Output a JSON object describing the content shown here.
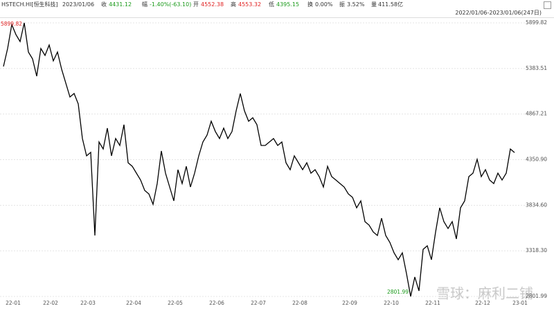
{
  "header": {
    "symbol": "HSTECH.HI[恒生科技]",
    "date": "2023/01/06",
    "close_label": "收",
    "close": "4431.12",
    "change_label": "幅",
    "change": "-1.40%(-63.10)",
    "open_label": "开",
    "open": "4552.38",
    "high_label": "高",
    "high": "4553.32",
    "low_label": "低",
    "low": "4395.15",
    "turnover_label": "换",
    "turnover": "0.00%",
    "amplitude_label": "振",
    "amplitude": "3.52%",
    "volume_label": "量",
    "volume": "411.58亿",
    "range": "2022/01/06-2023/01/06(247日)"
  },
  "watermark": "雪球：麻利二铺",
  "chart_data": {
    "type": "line",
    "color": "#000000",
    "grid": true,
    "categories": [
      null,
      "22-01",
      null,
      null,
      null,
      null,
      null,
      null,
      null,
      null,
      "22-02",
      null,
      null,
      null,
      null,
      null,
      null,
      null,
      null,
      "22-03",
      null,
      null,
      null,
      null,
      null,
      null,
      null,
      null,
      null,
      null,
      "22-04",
      null,
      null,
      null,
      null,
      null,
      null,
      null,
      null,
      null,
      "22-05",
      null,
      null,
      null,
      null,
      null,
      null,
      null,
      null,
      null,
      "22-06",
      null,
      null,
      null,
      null,
      null,
      null,
      null,
      null,
      null,
      "22-07",
      null,
      null,
      null,
      null,
      null,
      null,
      null,
      null,
      null,
      "22-08",
      null,
      null,
      null,
      null,
      null,
      null,
      null,
      null,
      null,
      null,
      null,
      "22-09",
      null,
      null,
      null,
      null,
      null,
      null,
      null,
      null,
      null,
      "22-10",
      null,
      null,
      null,
      null,
      null,
      null,
      null,
      null,
      null,
      "22-11",
      null,
      null,
      null,
      null,
      null,
      null,
      null,
      null,
      null,
      null,
      null,
      "22-12",
      null,
      null,
      null,
      null,
      null,
      null,
      null,
      null,
      "23-01"
    ],
    "values": [
      5406,
      5610,
      5880,
      5767,
      5688,
      5899.82,
      5570,
      5492,
      5296,
      5610,
      5531,
      5649,
      5469,
      5570,
      5374,
      5218,
      5061,
      5100,
      4982,
      4590,
      4394,
      4433,
      3492,
      4551,
      4472,
      4708,
      4394,
      4590,
      4512,
      4747,
      4316,
      4276,
      4198,
      4120,
      4002,
      3963,
      3845,
      4080,
      4449,
      4198,
      4041,
      3884,
      4237,
      4080,
      4276,
      4041,
      4198,
      4394,
      4551,
      4629,
      4786,
      4669,
      4590,
      4708,
      4590,
      4669,
      4904,
      5100,
      4904,
      4786,
      4825,
      4747,
      4512,
      4512,
      4551,
      4590,
      4512,
      4551,
      4316,
      4237,
      4394,
      4316,
      4237,
      4316,
      4198,
      4237,
      4159,
      4041,
      4276,
      4159,
      4120,
      4080,
      4041,
      3963,
      3924,
      3806,
      3884,
      3649,
      3610,
      3531,
      3492,
      3688,
      3492,
      3414,
      3296,
      3218,
      3296,
      3061,
      2801.99,
      3022,
      2865,
      3335,
      3375,
      3218,
      3531,
      3806,
      3649,
      3571,
      3649,
      3453,
      3806,
      3884,
      4159,
      4198,
      4355,
      4159,
      4237,
      4120,
      4080,
      4198,
      4120,
      4198,
      4472,
      4431.12
    ],
    "ylim": [
      2801.99,
      5899.82
    ],
    "yticks": [
      5899.82,
      5383.51,
      4867.21,
      {
        "value": 4350.9,
        "label": "4350.90"
      },
      {
        "value": 3834.6,
        "label": "3834.60"
      },
      {
        "value": 3318.3,
        "label": "3318.30"
      },
      2801.99
    ],
    "annotations": [
      {
        "text": "5899.82",
        "color": "#e02020"
      },
      {
        "text": "2801.99",
        "color": "#1a9a1a"
      }
    ]
  }
}
